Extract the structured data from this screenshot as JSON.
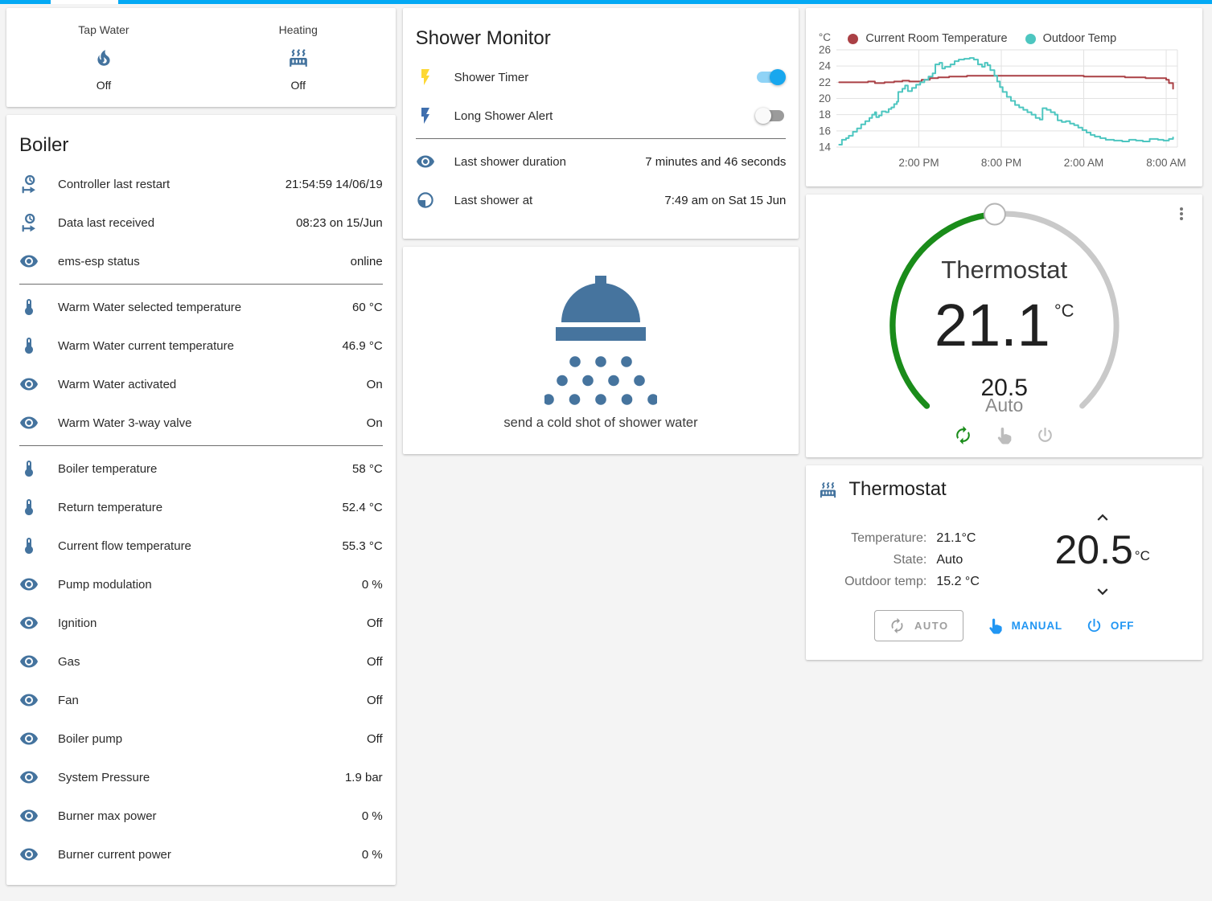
{
  "theme": {
    "accent": "#03a9f4",
    "icon_blue": "#44739e",
    "flash_yellow": "#fdd835",
    "flash_blue": "#3f6fae",
    "toggle_on_knob": "#18a7ee",
    "toggle_on_track": "#8fd3f6",
    "green_active": "#1a8c1a",
    "action_blue": "#2196f3"
  },
  "glance": {
    "items": [
      {
        "label": "Tap Water",
        "icon": "fire",
        "state": "Off"
      },
      {
        "label": "Heating",
        "icon": "radiator",
        "state": "Off"
      }
    ]
  },
  "boiler": {
    "title": "Boiler",
    "sections": [
      {
        "rows": [
          {
            "icon": "clock-start",
            "label": "Controller last restart",
            "value": "21:54:59 14/06/19"
          },
          {
            "icon": "clock-start",
            "label": "Data last received",
            "value": "08:23 on 15/Jun"
          },
          {
            "icon": "eye",
            "label": "ems-esp status",
            "value": "online"
          }
        ]
      },
      {
        "rows": [
          {
            "icon": "thermometer",
            "label": "Warm Water selected temperature",
            "value": "60 °C"
          },
          {
            "icon": "thermometer",
            "label": "Warm Water current temperature",
            "value": "46.9 °C"
          },
          {
            "icon": "eye",
            "label": "Warm Water activated",
            "value": "On"
          },
          {
            "icon": "eye",
            "label": "Warm Water 3-way valve",
            "value": "On"
          }
        ]
      },
      {
        "rows": [
          {
            "icon": "thermometer",
            "label": "Boiler temperature",
            "value": "58 °C"
          },
          {
            "icon": "thermometer",
            "label": "Return temperature",
            "value": "52.4 °C"
          },
          {
            "icon": "thermometer",
            "label": "Current flow temperature",
            "value": "55.3 °C"
          },
          {
            "icon": "eye",
            "label": "Pump modulation",
            "value": "0 %"
          },
          {
            "icon": "eye",
            "label": "Ignition",
            "value": "Off"
          },
          {
            "icon": "eye",
            "label": "Gas",
            "value": "Off"
          },
          {
            "icon": "eye",
            "label": "Fan",
            "value": "Off"
          },
          {
            "icon": "eye",
            "label": "Boiler pump",
            "value": "Off"
          },
          {
            "icon": "eye",
            "label": "System Pressure",
            "value": "1.9 bar"
          },
          {
            "icon": "eye",
            "label": "Burner max power",
            "value": "0 %"
          },
          {
            "icon": "eye",
            "label": "Burner current power",
            "value": "0 %"
          }
        ]
      }
    ]
  },
  "shower_monitor": {
    "title": "Shower Monitor",
    "switches": [
      {
        "icon": "flash",
        "icon_color": "#fdd835",
        "label": "Shower Timer",
        "state": "on"
      },
      {
        "icon": "flash",
        "icon_color": "#3f6fae",
        "label": "Long Shower Alert",
        "state": "off"
      }
    ],
    "rows": [
      {
        "icon": "eye",
        "label": "Last shower duration",
        "value": "7 minutes and 46 seconds"
      },
      {
        "icon": "clock-pie",
        "label": "Last shower at",
        "value": "7:49 am on Sat 15 Jun"
      }
    ]
  },
  "shower_action": {
    "label": "send a cold shot of shower water"
  },
  "chart_data": {
    "type": "line",
    "ylabel": "°C",
    "ylim": [
      14,
      26
    ],
    "yticks": [
      14,
      16,
      18,
      20,
      22,
      24,
      26
    ],
    "xlim": [
      0,
      24.7
    ],
    "x_unit": "hours since 8:00 AM",
    "xticks": [
      {
        "pos": 6,
        "label": "2:00 PM"
      },
      {
        "pos": 12,
        "label": "8:00 PM"
      },
      {
        "pos": 18,
        "label": "2:00 AM"
      },
      {
        "pos": 24,
        "label": "8:00 AM"
      }
    ],
    "grid": true,
    "legend_position": "top",
    "series": [
      {
        "name": "Current Room Temperature",
        "color": "#aa4045",
        "points": [
          [
            0.2,
            22.0
          ],
          [
            1.5,
            22.0
          ],
          [
            2.3,
            22.1
          ],
          [
            2.8,
            21.9
          ],
          [
            3.5,
            22.0
          ],
          [
            4.2,
            22.1
          ],
          [
            4.8,
            22.2
          ],
          [
            5.3,
            22.1
          ],
          [
            5.8,
            22.1
          ],
          [
            6.2,
            22.3
          ],
          [
            6.8,
            22.5
          ],
          [
            7.4,
            22.6
          ],
          [
            8.2,
            22.7
          ],
          [
            9.5,
            22.8
          ],
          [
            11,
            22.8
          ],
          [
            13,
            22.8
          ],
          [
            15,
            22.8
          ],
          [
            16.5,
            22.8
          ],
          [
            18,
            22.7
          ],
          [
            19.5,
            22.7
          ],
          [
            21,
            22.6
          ],
          [
            22.5,
            22.5
          ],
          [
            23.5,
            22.5
          ],
          [
            24.0,
            22.3
          ],
          [
            24.2,
            21.9
          ],
          [
            24.5,
            21.2
          ]
        ]
      },
      {
        "name": "Outdoor Temp",
        "color": "#4dc6c0",
        "points": [
          [
            0.2,
            14.3
          ],
          [
            0.4,
            14.9
          ],
          [
            0.7,
            15.1
          ],
          [
            0.9,
            15.4
          ],
          [
            1.2,
            15.9
          ],
          [
            1.5,
            16.3
          ],
          [
            1.8,
            16.8
          ],
          [
            2.1,
            17.2
          ],
          [
            2.4,
            17.6
          ],
          [
            2.6,
            18.0
          ],
          [
            2.8,
            18.3
          ],
          [
            2.9,
            17.7
          ],
          [
            3.1,
            17.9
          ],
          [
            3.3,
            18.4
          ],
          [
            3.6,
            18.3
          ],
          [
            3.8,
            18.7
          ],
          [
            4.0,
            18.9
          ],
          [
            4.2,
            19.3
          ],
          [
            4.4,
            19.6
          ],
          [
            4.5,
            20.8
          ],
          [
            4.8,
            21.2
          ],
          [
            5.0,
            21.6
          ],
          [
            5.2,
            20.9
          ],
          [
            5.5,
            21.3
          ],
          [
            5.8,
            21.7
          ],
          [
            6.1,
            22.0
          ],
          [
            6.4,
            22.3
          ],
          [
            6.7,
            22.7
          ],
          [
            7.0,
            23.1
          ],
          [
            7.2,
            24.2
          ],
          [
            7.5,
            24.4
          ],
          [
            7.7,
            23.7
          ],
          [
            7.9,
            23.9
          ],
          [
            8.3,
            24.2
          ],
          [
            8.6,
            24.6
          ],
          [
            8.9,
            24.8
          ],
          [
            9.3,
            24.9
          ],
          [
            9.7,
            25.0
          ],
          [
            10.0,
            24.8
          ],
          [
            10.3,
            24.2
          ],
          [
            10.6,
            23.9
          ],
          [
            10.8,
            24.4
          ],
          [
            11.0,
            24.1
          ],
          [
            11.2,
            23.5
          ],
          [
            11.5,
            22.8
          ],
          [
            11.7,
            22.1
          ],
          [
            11.9,
            21.4
          ],
          [
            12.1,
            20.8
          ],
          [
            12.4,
            20.2
          ],
          [
            12.7,
            19.7
          ],
          [
            13.0,
            19.2
          ],
          [
            13.3,
            18.9
          ],
          [
            13.6,
            18.6
          ],
          [
            13.9,
            18.3
          ],
          [
            14.2,
            18.0
          ],
          [
            14.5,
            17.6
          ],
          [
            14.8,
            17.4
          ],
          [
            15.0,
            18.8
          ],
          [
            15.3,
            18.6
          ],
          [
            15.6,
            18.3
          ],
          [
            15.9,
            18.0
          ],
          [
            16.1,
            17.3
          ],
          [
            16.4,
            17.1
          ],
          [
            16.7,
            17.2
          ],
          [
            17.0,
            16.9
          ],
          [
            17.3,
            16.7
          ],
          [
            17.6,
            16.4
          ],
          [
            17.9,
            16.1
          ],
          [
            18.2,
            15.8
          ],
          [
            18.5,
            15.5
          ],
          [
            18.8,
            15.3
          ],
          [
            19.2,
            15.1
          ],
          [
            19.6,
            14.9
          ],
          [
            20.2,
            14.8
          ],
          [
            20.8,
            14.7
          ],
          [
            21.3,
            14.9
          ],
          [
            21.8,
            14.8
          ],
          [
            22.3,
            14.7
          ],
          [
            22.8,
            15.0
          ],
          [
            23.4,
            14.9
          ],
          [
            23.8,
            14.8
          ],
          [
            24.2,
            15.0
          ],
          [
            24.5,
            15.2
          ]
        ]
      }
    ]
  },
  "dial": {
    "title": "Thermostat",
    "current": "21.1",
    "unit": "°C",
    "setpoint": "20.5",
    "mode": "Auto",
    "modes": [
      {
        "icon": "autorenew",
        "name": "auto",
        "active": true
      },
      {
        "icon": "hand",
        "name": "manual",
        "active": false
      },
      {
        "icon": "power",
        "name": "off",
        "active": false
      }
    ]
  },
  "thermostat": {
    "title": "Thermostat",
    "info": [
      {
        "label": "Temperature:",
        "value": "21.1°C"
      },
      {
        "label": "State:",
        "value": "Auto"
      },
      {
        "label": "Outdoor temp:",
        "value": "15.2 °C"
      }
    ],
    "setpoint": "20.5",
    "unit": "°C",
    "buttons": [
      {
        "icon": "autorenew",
        "label": "AUTO",
        "style": "outlined"
      },
      {
        "icon": "hand",
        "label": "MANUAL",
        "style": "flat"
      },
      {
        "icon": "power",
        "label": "OFF",
        "style": "flat"
      }
    ]
  }
}
